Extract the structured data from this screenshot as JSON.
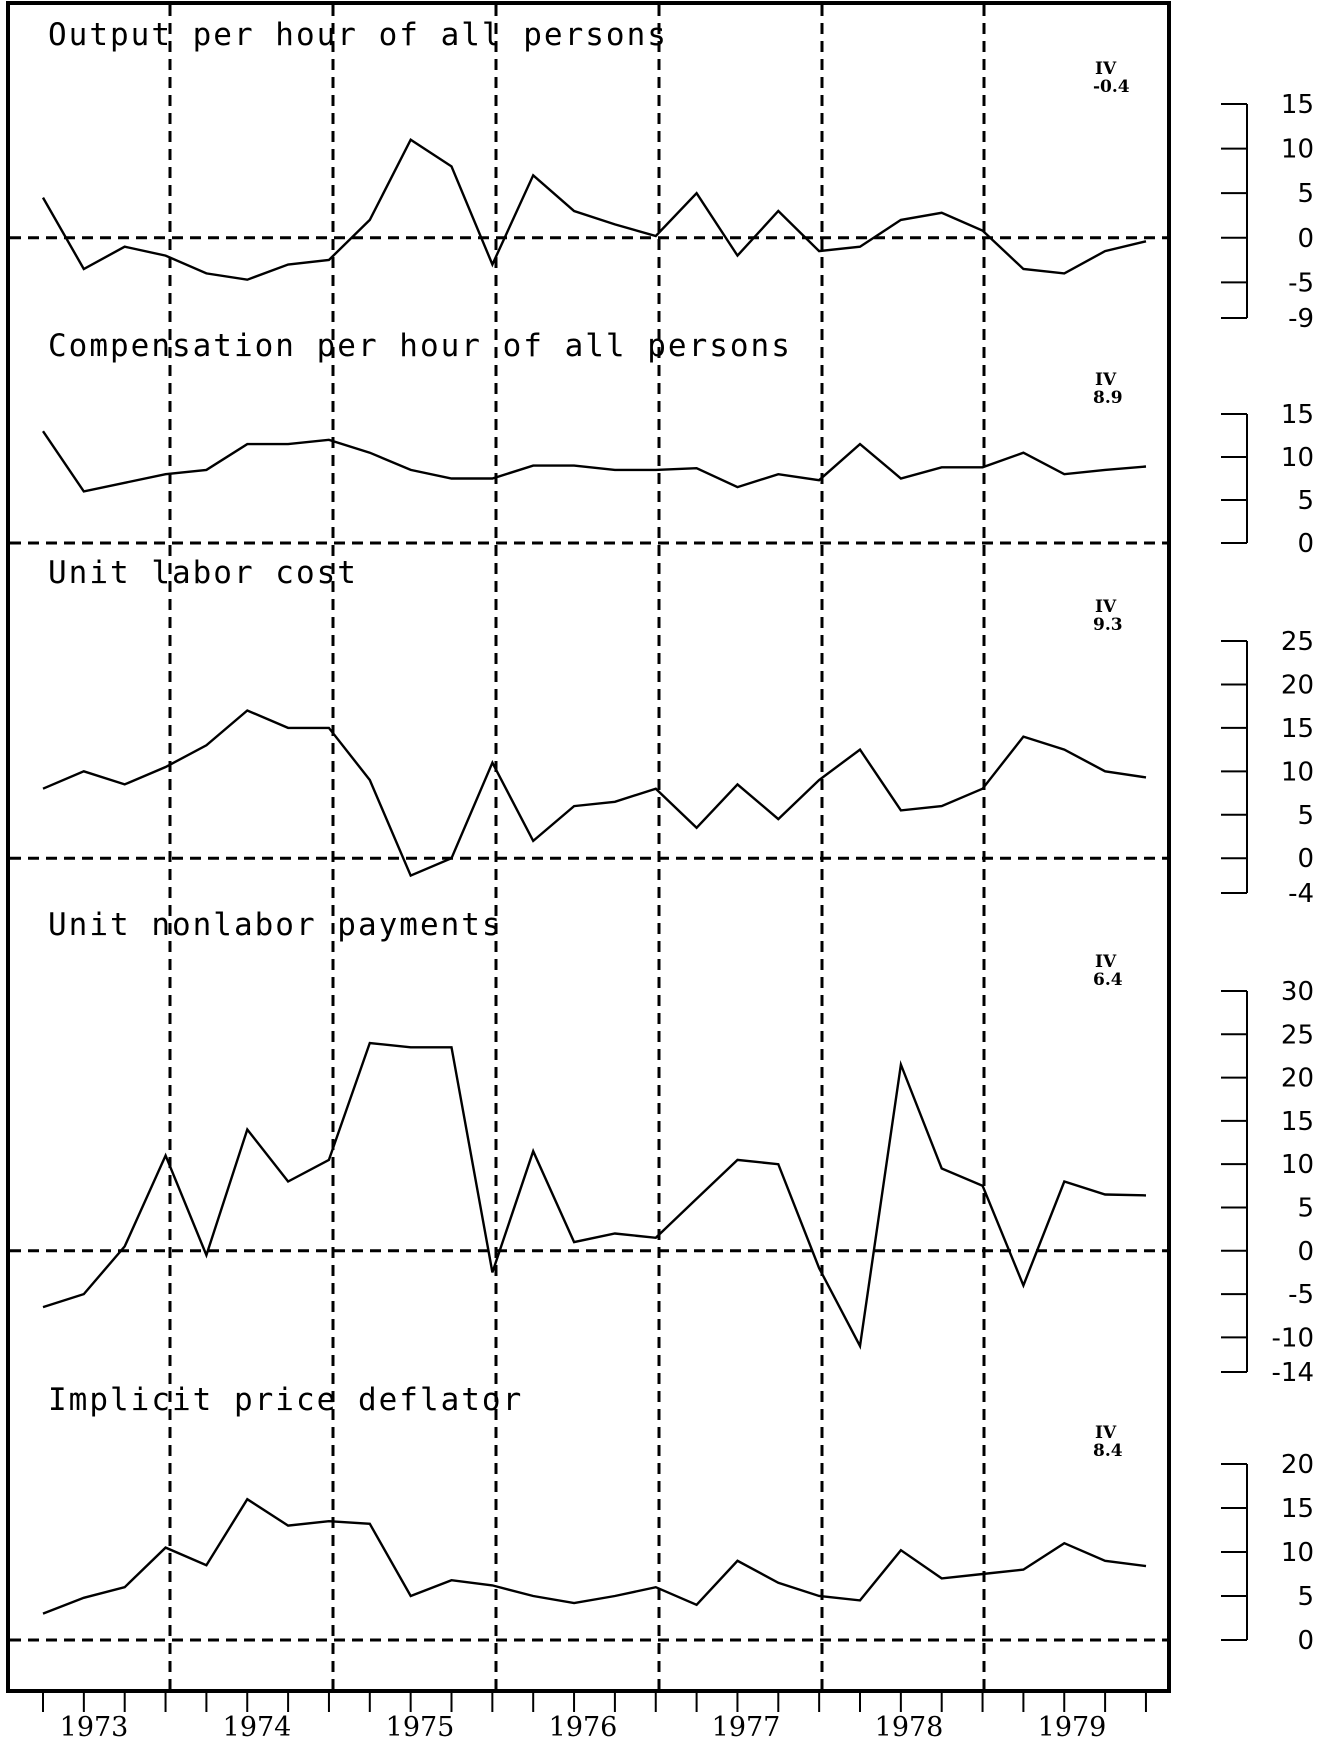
{
  "chart_data": {
    "type": "line",
    "x_axis": {
      "year_labels": [
        "1973",
        "1974",
        "1975",
        "1976",
        "1977",
        "1978",
        "1979"
      ],
      "quarters": [
        "1973-I",
        "1973-II",
        "1973-III",
        "1973-IV",
        "1974-I",
        "1974-II",
        "1974-III",
        "1974-IV",
        "1975-I",
        "1975-II",
        "1975-III",
        "1975-IV",
        "1976-I",
        "1976-II",
        "1976-III",
        "1976-IV",
        "1977-I",
        "1977-II",
        "1977-III",
        "1977-IV",
        "1978-I",
        "1978-II",
        "1978-III",
        "1978-IV",
        "1979-I",
        "1979-II",
        "1979-III",
        "1979-IV"
      ]
    },
    "panels": [
      {
        "title": "Output per hour of all persons",
        "latest_quarter_label": "IV",
        "latest_value_label": "-0.4",
        "yticks": [
          "15",
          "10",
          "5",
          "0",
          "-5",
          "-9"
        ],
        "ylim": [
          -9,
          15
        ],
        "values": [
          4.5,
          -3.5,
          -1.0,
          -2.0,
          -4.0,
          -4.7,
          -3.0,
          -2.5,
          2.0,
          11.0,
          8.0,
          -3.0,
          7.0,
          3.0,
          1.5,
          0.2,
          5.0,
          -2.0,
          3.0,
          -1.5,
          -1.0,
          2.0,
          2.8,
          0.8,
          -3.5,
          -4.0,
          -1.5,
          -0.4
        ]
      },
      {
        "title": "Compensation per hour of all persons",
        "latest_quarter_label": "IV",
        "latest_value_label": "8.9",
        "yticks": [
          "15",
          "10",
          "5",
          "0"
        ],
        "ylim": [
          0,
          15
        ],
        "values": [
          13.0,
          6.0,
          7.0,
          8.0,
          8.5,
          11.5,
          11.5,
          12.0,
          10.5,
          8.5,
          7.5,
          7.5,
          9.0,
          9.0,
          8.5,
          8.5,
          8.7,
          6.5,
          8.0,
          7.3,
          11.5,
          7.5,
          8.8,
          8.8,
          10.5,
          8.0,
          8.5,
          8.9
        ]
      },
      {
        "title": "Unit labor cost",
        "latest_quarter_label": "IV",
        "latest_value_label": "9.3",
        "yticks": [
          "25",
          "20",
          "15",
          "10",
          "5",
          "0",
          "-4"
        ],
        "ylim": [
          -4,
          25
        ],
        "values": [
          8.0,
          10.0,
          8.5,
          10.5,
          13.0,
          17.0,
          15.0,
          15.0,
          9.0,
          -2.0,
          0.0,
          11.0,
          2.0,
          6.0,
          6.5,
          8.0,
          3.5,
          8.5,
          4.5,
          9.0,
          12.5,
          5.5,
          6.0,
          8.0,
          14.0,
          12.5,
          10.0,
          9.3
        ]
      },
      {
        "title": "Unit nonlabor payments",
        "latest_quarter_label": "IV",
        "latest_value_label": "6.4",
        "yticks": [
          "30",
          "25",
          "20",
          "15",
          "10",
          "5",
          "0",
          "-5",
          "-10",
          "-14"
        ],
        "ylim": [
          -14,
          30
        ],
        "values": [
          -6.5,
          -5.0,
          0.5,
          11.0,
          -0.5,
          14.0,
          8.0,
          10.5,
          24.0,
          23.5,
          23.5,
          -2.5,
          11.5,
          1.0,
          2.0,
          1.5,
          6.0,
          10.5,
          10.0,
          -2.0,
          -11.0,
          21.5,
          9.5,
          7.5,
          -4.0,
          8.0,
          6.5,
          6.4
        ]
      },
      {
        "title": "Implicit price deflator",
        "latest_quarter_label": "IV",
        "latest_value_label": "8.4",
        "yticks": [
          "20",
          "15",
          "10",
          "5",
          "0"
        ],
        "ylim": [
          0,
          20
        ],
        "values": [
          3.0,
          4.8,
          6.0,
          10.5,
          8.5,
          16.0,
          13.0,
          13.5,
          13.2,
          5.0,
          6.8,
          6.2,
          5.0,
          4.2,
          5.0,
          6.0,
          4.0,
          9.0,
          6.5,
          5.0,
          4.5,
          10.2,
          7.0,
          7.5,
          8.0,
          11.0,
          9.0,
          8.4
        ]
      }
    ]
  }
}
